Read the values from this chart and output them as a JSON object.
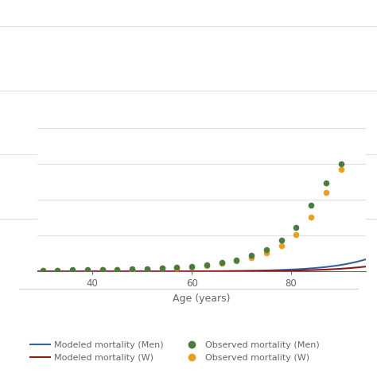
{
  "xlabel": "Age (years)",
  "background_color": "#ffffff",
  "grid_color": "#e0e0e0",
  "men_line_color": "#3a5fa0",
  "women_line_color": "#8b1a1a",
  "men_dot_color": "#4a7c3f",
  "women_dot_color": "#e8a020",
  "xticks": [
    40,
    60,
    80
  ],
  "xlim": [
    29,
    95
  ],
  "ylim": [
    0.0,
    0.38
  ],
  "men_model_a": 9.5e-06,
  "men_model_b": 0.125,
  "women_model_a": 6e-06,
  "women_model_b": 0.118,
  "men_obs_ages": [
    30,
    33,
    36,
    39,
    42,
    45,
    48,
    51,
    54,
    57,
    60,
    63,
    66,
    69,
    72,
    75,
    78,
    81,
    84,
    87,
    90
  ],
  "men_obs_vals": [
    0.003,
    0.003,
    0.004,
    0.004,
    0.005,
    0.005,
    0.006,
    0.007,
    0.009,
    0.011,
    0.014,
    0.018,
    0.024,
    0.031,
    0.042,
    0.058,
    0.082,
    0.117,
    0.175,
    0.235,
    0.285
  ],
  "women_obs_ages": [
    30,
    33,
    36,
    39,
    42,
    45,
    48,
    51,
    54,
    57,
    60,
    63,
    66,
    69,
    72,
    75,
    78,
    81,
    84,
    87,
    90
  ],
  "women_obs_vals": [
    0.002,
    0.002,
    0.003,
    0.003,
    0.004,
    0.004,
    0.005,
    0.006,
    0.008,
    0.01,
    0.012,
    0.016,
    0.021,
    0.027,
    0.036,
    0.049,
    0.068,
    0.098,
    0.145,
    0.21,
    0.27
  ],
  "legend_labels": [
    "Modeled mortality (Men)",
    "Modeled mortality (W)",
    "Observed mortality (Men)",
    "Observed mortality (W)"
  ],
  "separator_color": "#cccccc",
  "tick_color": "#666666"
}
